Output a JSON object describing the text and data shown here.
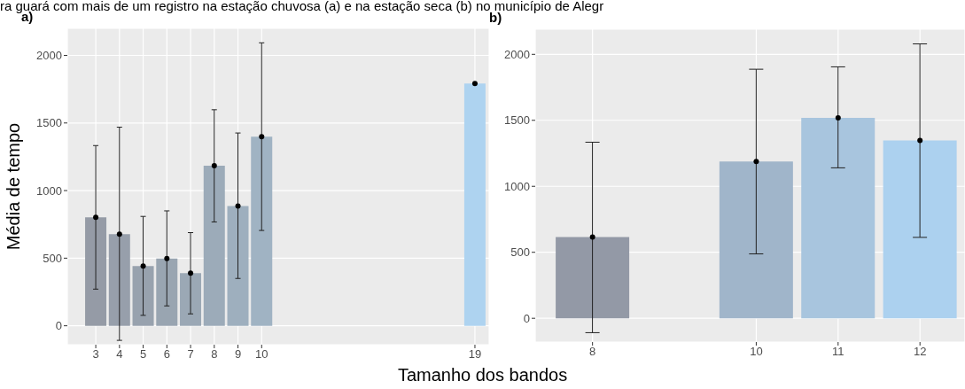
{
  "chart_data": [
    {
      "type": "bar",
      "title": "a)",
      "ylabel": "Média de tempo",
      "xlabel": "Tamanho dos bandos",
      "annotations": [
        "ra guará com mais de um registro na estação chuvosa (a) e na estação seca (b) no município de Alegr"
      ],
      "x": [
        3,
        4,
        5,
        6,
        7,
        8,
        9,
        10,
        19
      ],
      "series": [
        {
          "type": "bar",
          "colors": [
            "#959ba6",
            "#979fab",
            "#98a2ae",
            "#99a5b1",
            "#9ba8b5",
            "#9cabb9",
            "#9eafbe",
            "#a0b3c3",
            "#aed3f0"
          ],
          "values": [
            802,
            678,
            441,
            497,
            389,
            1184,
            886,
            1399,
            1792
          ],
          "errors": [
            [
              271,
              1333
            ],
            [
              -108,
              1469
            ],
            [
              77,
              809
            ],
            [
              147,
              850
            ],
            [
              88,
              689
            ],
            [
              768,
              1598
            ],
            [
              350,
              1426
            ],
            [
              705,
              2093
            ],
            null
          ]
        },
        {
          "type": "scatter",
          "color": "#000000",
          "values": [
            802,
            678,
            441,
            497,
            389,
            1184,
            886,
            1399,
            1792
          ]
        }
      ],
      "xlim": [
        1.8,
        19.6
      ],
      "xticks": [
        3,
        4,
        5,
        6,
        7,
        8,
        9,
        10,
        19
      ],
      "ylim": [
        -140,
        2200
      ],
      "yticks": [
        0,
        500,
        1000,
        1500,
        2000
      ],
      "grid": true,
      "legend": false,
      "marker": "circle"
    },
    {
      "type": "bar",
      "title": "b)",
      "x": [
        8,
        10,
        11,
        12
      ],
      "series": [
        {
          "type": "bar",
          "colors": [
            "#9399a6",
            "#a0b5ca",
            "#a8c5de",
            "#acd1ef"
          ],
          "values": [
            615,
            1188,
            1519,
            1348
          ],
          "errors": [
            [
              -109,
              1334
            ],
            [
              488,
              1887
            ],
            [
              1140,
              1905
            ],
            [
              613,
              2079
            ]
          ]
        },
        {
          "type": "scatter",
          "color": "#000000",
          "values": [
            615,
            1188,
            1519,
            1348
          ]
        }
      ],
      "xlim": [
        7.3,
        12.55
      ],
      "xticks": [
        8,
        10,
        11,
        12
      ],
      "ylim": [
        -180,
        2190
      ],
      "yticks": [
        0,
        500,
        1000,
        1500,
        2000
      ],
      "grid": true,
      "legend": false,
      "marker": "circle"
    }
  ]
}
